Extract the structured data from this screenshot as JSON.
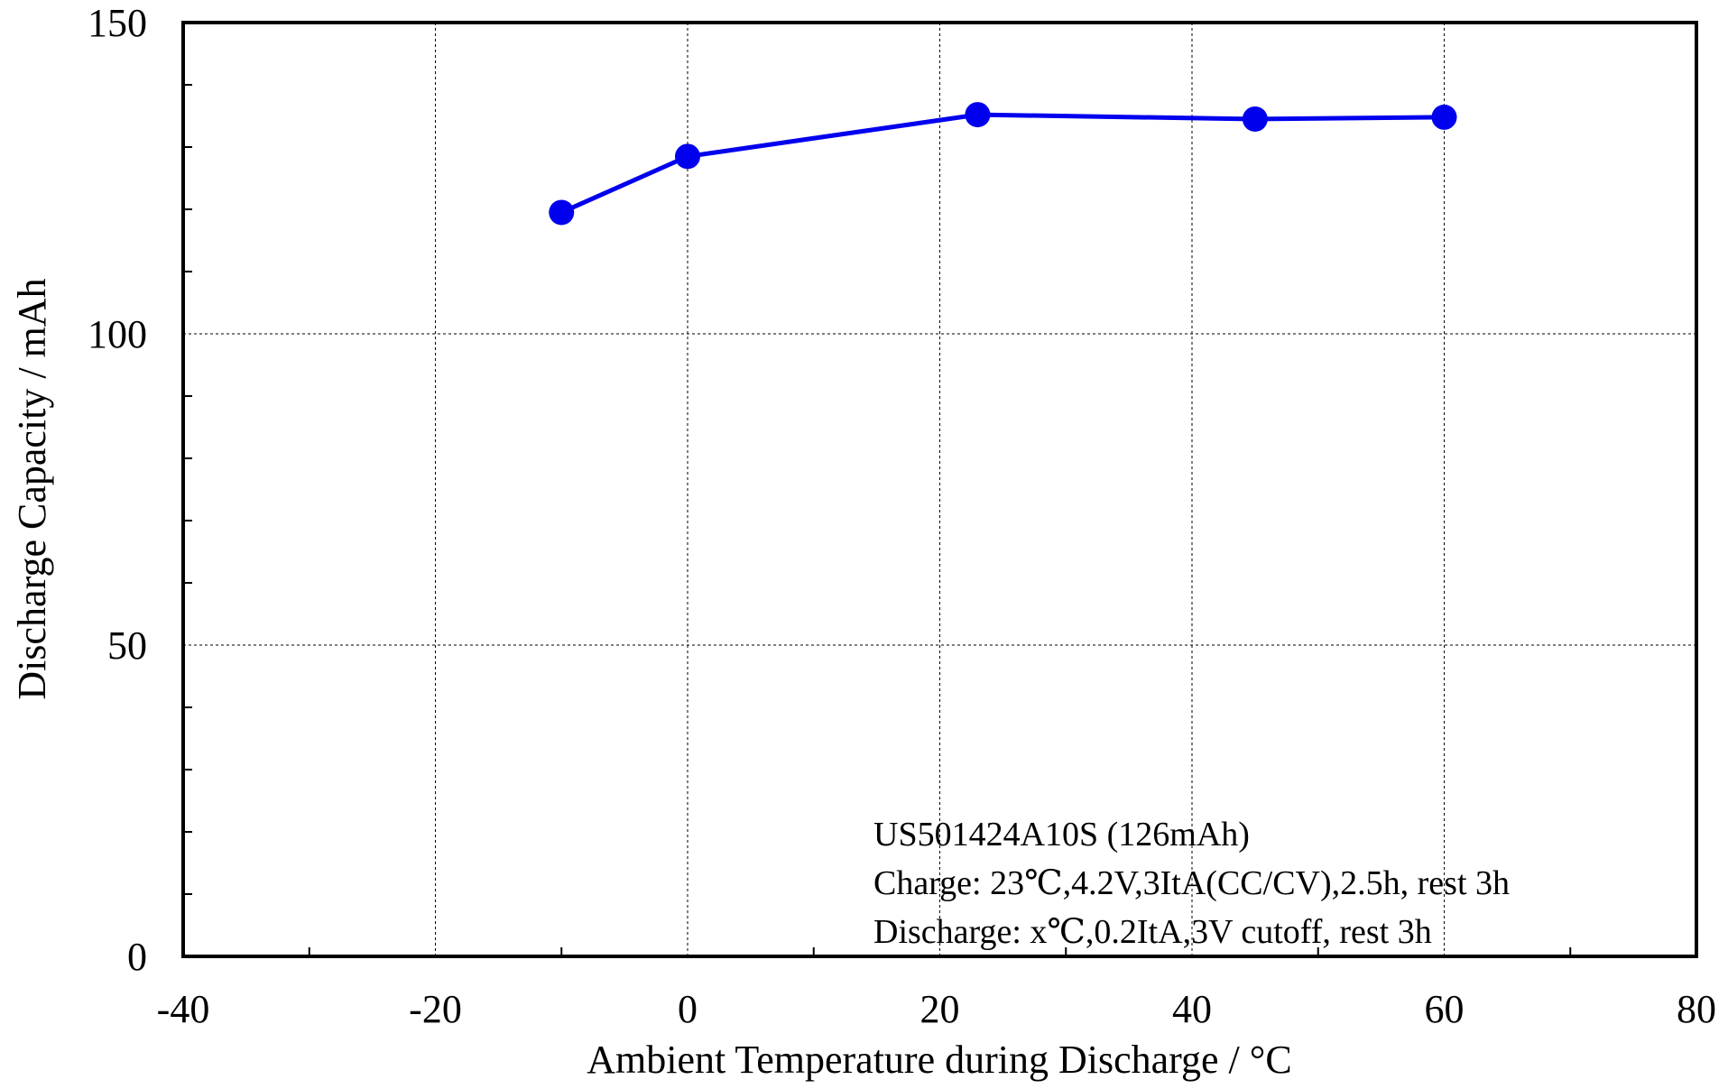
{
  "chart_data": {
    "type": "line",
    "title": "",
    "xlabel": "Ambient Temperature during Discharge / °C",
    "ylabel": "Discharge Capacity / mAh",
    "xlim": [
      -40,
      80
    ],
    "ylim": [
      0,
      150
    ],
    "x_ticks": [
      -40,
      -20,
      0,
      20,
      40,
      60,
      80
    ],
    "y_ticks": [
      0,
      50,
      100,
      150
    ],
    "x_tick_labels": [
      "-40",
      "-20",
      "0",
      "20",
      "40",
      "60",
      "80"
    ],
    "y_tick_labels": [
      "0",
      "50",
      "100",
      "150"
    ],
    "x_minor_ticks": [
      -30,
      -10,
      10,
      30,
      50,
      70
    ],
    "y_minor_ticks": [
      10,
      20,
      30,
      40,
      60,
      70,
      80,
      90,
      110,
      120,
      130,
      140
    ],
    "grid": true,
    "series": [
      {
        "x": [
          -10,
          0,
          23,
          45,
          60
        ],
        "y": [
          119.5,
          128.5,
          135.2,
          134.5,
          134.8
        ],
        "color": "#0000ee"
      }
    ],
    "annotation_lines": [
      "US501424A10S (126mAh)",
      "Charge: 23℃,4.2V,3ItA(CC/CV),2.5h, rest 3h",
      "Discharge: x℃,0.2ItA,3V cutoff, rest 3h"
    ],
    "annotation_position": "bottom-right"
  }
}
